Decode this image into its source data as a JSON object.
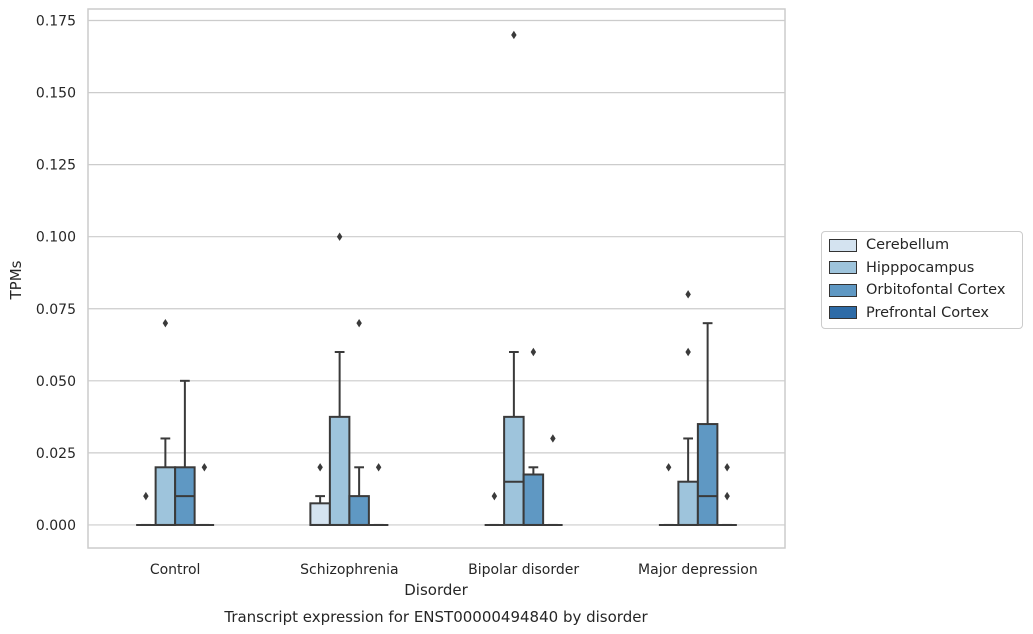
{
  "chart_data": {
    "type": "box",
    "title": "Transcript expression for ENST00000494840 by disorder",
    "xlabel": "Disorder",
    "ylabel": "TPMs",
    "ylim": [
      -0.008,
      0.179
    ],
    "yticks": [
      0.0,
      0.025,
      0.05,
      0.075,
      0.1,
      0.125,
      0.15,
      0.175
    ],
    "ytick_labels": [
      "0.000",
      "0.025",
      "0.050",
      "0.075",
      "0.100",
      "0.125",
      "0.150",
      "0.175"
    ],
    "grid": "horizontal",
    "legend_position": "right",
    "categories": [
      "Control",
      "Schizophrenia",
      "Bipolar disorder",
      "Major depression"
    ],
    "series": [
      {
        "name": "Cerebellum",
        "color": "#d4e3f0",
        "boxes": [
          {
            "q1": 0,
            "median": 0,
            "q3": 0,
            "whislo": 0,
            "whishi": 0,
            "fliers": [
              0.01
            ]
          },
          {
            "q1": 0,
            "median": 0,
            "q3": 0.0075,
            "whislo": 0,
            "whishi": 0.01,
            "fliers": [
              0.02
            ]
          },
          {
            "q1": 0,
            "median": 0,
            "q3": 0,
            "whislo": 0,
            "whishi": 0,
            "fliers": [
              0.01
            ]
          },
          {
            "q1": 0,
            "median": 0,
            "q3": 0,
            "whislo": 0,
            "whishi": 0,
            "fliers": [
              0.02
            ]
          }
        ]
      },
      {
        "name": "Hipppocampus",
        "color": "#9ec4dc",
        "boxes": [
          {
            "q1": 0,
            "median": 0,
            "q3": 0.02,
            "whislo": 0,
            "whishi": 0.03,
            "fliers": [
              0.07
            ]
          },
          {
            "q1": 0,
            "median": 0,
            "q3": 0.0375,
            "whislo": 0,
            "whishi": 0.06,
            "fliers": [
              0.1
            ]
          },
          {
            "q1": 0,
            "median": 0.015,
            "q3": 0.0375,
            "whislo": 0,
            "whishi": 0.06,
            "fliers": [
              0.17
            ]
          },
          {
            "q1": 0,
            "median": 0,
            "q3": 0.015,
            "whislo": 0,
            "whishi": 0.03,
            "fliers": [
              0.06,
              0.08
            ]
          }
        ]
      },
      {
        "name": "Orbitofontal Cortex",
        "color": "#5f98c3",
        "boxes": [
          {
            "q1": 0,
            "median": 0.01,
            "q3": 0.02,
            "whislo": 0,
            "whishi": 0.05,
            "fliers": []
          },
          {
            "q1": 0,
            "median": 0,
            "q3": 0.01,
            "whislo": 0,
            "whishi": 0.02,
            "fliers": [
              0.07
            ]
          },
          {
            "q1": 0,
            "median": 0,
            "q3": 0.0175,
            "whislo": 0,
            "whishi": 0.02,
            "fliers": [
              0.06
            ]
          },
          {
            "q1": 0,
            "median": 0.01,
            "q3": 0.035,
            "whislo": 0,
            "whishi": 0.07,
            "fliers": []
          }
        ]
      },
      {
        "name": "Prefrontal Cortex",
        "color": "#2d6ba7",
        "boxes": [
          {
            "q1": 0,
            "median": 0,
            "q3": 0,
            "whislo": 0,
            "whishi": 0,
            "fliers": [
              0.02
            ]
          },
          {
            "q1": 0,
            "median": 0,
            "q3": 0,
            "whislo": 0,
            "whishi": 0,
            "fliers": [
              0.02
            ]
          },
          {
            "q1": 0,
            "median": 0,
            "q3": 0,
            "whislo": 0,
            "whishi": 0,
            "fliers": [
              0.03
            ]
          },
          {
            "q1": 0,
            "median": 0,
            "q3": 0,
            "whislo": 0,
            "whishi": 0,
            "fliers": [
              0.01,
              0.02
            ]
          }
        ]
      }
    ]
  }
}
